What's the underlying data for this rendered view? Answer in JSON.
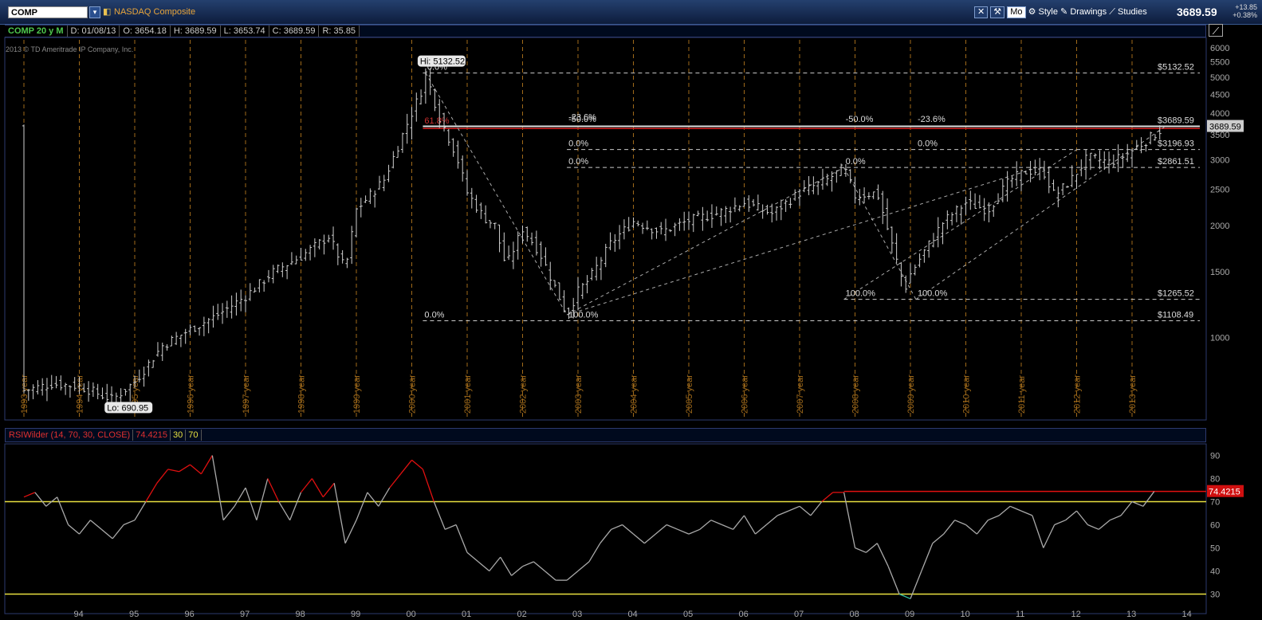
{
  "toolbar": {
    "symbol": "COMP",
    "description": "NASDAQ Composite",
    "mode": "Mo",
    "style_label": "Style",
    "drawings_label": "Drawings",
    "studies_label": "Studies",
    "last_price": "3689.59",
    "change": "+13.85",
    "change_pct": "+0.38%"
  },
  "info_bar": {
    "chart_label": "COMP 20 y M",
    "date": "D: 01/08/13",
    "open": "O: 3654.18",
    "high": "H: 3689.59",
    "low": "L: 3653.74",
    "close": "C: 3689.59",
    "range": "R: 35.85"
  },
  "copyright": "2013 © TD Ameritrade IP Company, Inc.",
  "rsi_bar": {
    "label": "RSIWilder (14, 70, 30, CLOSE)",
    "value": "74.4215",
    "lower": "30",
    "upper": "70"
  },
  "colors": {
    "price_bar": "#cfcfcf",
    "year_line": "#a06a1a",
    "rsi_overbought": "#e01010",
    "rsi_normal": "#aaaaaa",
    "rsi_oversold": "#30c0a0",
    "threshold": "#e8e040"
  },
  "chart_data": [
    {
      "type": "ohlc",
      "title": "COMP 20 y M",
      "y_scale": "log",
      "ylim": [
        600,
        6300
      ],
      "y_ticks": [
        1000,
        1500,
        2000,
        2500,
        3000,
        3500,
        4000,
        4500,
        5000,
        5500,
        6000
      ],
      "x_ticks": [
        "1993 year",
        "1994 year",
        "1995 year",
        "1996 year",
        "1997 year",
        "1998 year",
        "1999 year",
        "2000 year",
        "2001 year",
        "2002 year",
        "2003 year",
        "2004 year",
        "2005 year",
        "2006 year",
        "2007 year",
        "2008 year",
        "2009 year",
        "2010 year",
        "2011 year",
        "2012 year",
        "2013 year"
      ],
      "close_path": [
        [
          1993.0,
          720
        ],
        [
          1993.5,
          750
        ],
        [
          1994.0,
          740
        ],
        [
          1994.2,
          720
        ],
        [
          1994.6,
          680
        ],
        [
          1995.0,
          760
        ],
        [
          1995.5,
          950
        ],
        [
          1996.0,
          1050
        ],
        [
          1996.5,
          1150
        ],
        [
          1997.0,
          1290
        ],
        [
          1997.5,
          1500
        ],
        [
          1998.0,
          1650
        ],
        [
          1998.5,
          1870
        ],
        [
          1998.8,
          1520
        ],
        [
          1999.0,
          2200
        ],
        [
          1999.5,
          2650
        ],
        [
          1999.9,
          3700
        ],
        [
          2000.2,
          4700
        ],
        [
          2000.25,
          5132
        ],
        [
          2000.5,
          3900
        ],
        [
          2000.8,
          3100
        ],
        [
          2001.0,
          2450
        ],
        [
          2001.3,
          2100
        ],
        [
          2001.5,
          2000
        ],
        [
          2001.7,
          1550
        ],
        [
          2002.0,
          1960
        ],
        [
          2002.3,
          1700
        ],
        [
          2002.6,
          1350
        ],
        [
          2002.8,
          1150
        ],
        [
          2003.0,
          1330
        ],
        [
          2003.2,
          1430
        ],
        [
          2003.6,
          1800
        ],
        [
          2004.0,
          2050
        ],
        [
          2004.5,
          1920
        ],
        [
          2005.0,
          2060
        ],
        [
          2005.5,
          2150
        ],
        [
          2006.0,
          2300
        ],
        [
          2006.5,
          2150
        ],
        [
          2007.0,
          2450
        ],
        [
          2007.5,
          2650
        ],
        [
          2007.8,
          2860
        ],
        [
          2008.0,
          2400
        ],
        [
          2008.4,
          2450
        ],
        [
          2008.7,
          1700
        ],
        [
          2008.9,
          1350
        ],
        [
          2009.0,
          1480
        ],
        [
          2009.3,
          1750
        ],
        [
          2009.6,
          2050
        ],
        [
          2010.0,
          2300
        ],
        [
          2010.4,
          2200
        ],
        [
          2010.8,
          2650
        ],
        [
          2011.1,
          2800
        ],
        [
          2011.4,
          2800
        ],
        [
          2011.6,
          2400
        ],
        [
          2011.9,
          2650
        ],
        [
          2012.2,
          3050
        ],
        [
          2012.6,
          2950
        ],
        [
          2012.9,
          3100
        ],
        [
          2013.2,
          3330
        ],
        [
          2013.6,
          3689.59
        ]
      ],
      "high": {
        "label": "Hi: 5132.52",
        "x": 2000.25,
        "y": 5132.52
      },
      "low": {
        "label": "Lo: 690.95",
        "x": 1994.6,
        "y": 690.95
      },
      "levels": [
        {
          "label": "$5132.52",
          "y": 5132.52
        },
        {
          "label": "$3689.59",
          "y": 3689.59
        },
        {
          "label": "$3196.93",
          "y": 3196.93
        },
        {
          "label": "$2861.51",
          "y": 2861.51
        },
        {
          "label": "$1265.52",
          "y": 1265.52
        },
        {
          "label": "$1108.49",
          "y": 1108.49
        }
      ],
      "fib_labels": [
        {
          "text": "0.0%",
          "x": 2000.25,
          "y": 5132.52
        },
        {
          "text": "61.8%",
          "x": 2000.2,
          "y": 3680
        },
        {
          "text": "0.0%",
          "x": 2000.2,
          "y": 1108.49
        },
        {
          "text": "100.0%",
          "x": 2002.8,
          "y": 1108.49
        },
        {
          "text": "-23.6%",
          "x": 2002.8,
          "y": 3760
        },
        {
          "text": "-50.0%",
          "x": 2002.8,
          "y": 3720
        },
        {
          "text": "0.0%",
          "x": 2002.8,
          "y": 3196.93
        },
        {
          "text": "0.0%",
          "x": 2002.8,
          "y": 2861.51
        },
        {
          "text": "-50.0%",
          "x": 2007.8,
          "y": 3720
        },
        {
          "text": "0.0%",
          "x": 2007.8,
          "y": 2861.51
        },
        {
          "text": "100.0%",
          "x": 2007.8,
          "y": 1265.52
        },
        {
          "text": "-23.6%",
          "x": 2009.1,
          "y": 3720
        },
        {
          "text": "0.0%",
          "x": 2009.1,
          "y": 3196.93
        },
        {
          "text": "100.0%",
          "x": 2009.1,
          "y": 1265.52
        }
      ],
      "current": "3689.59"
    },
    {
      "type": "line",
      "title": "RSIWilder (14, 70, 30, CLOSE)",
      "ylim": [
        25,
        95
      ],
      "y_ticks": [
        30,
        40,
        50,
        60,
        70,
        80,
        90
      ],
      "x_ticks": [
        "94",
        "95",
        "96",
        "97",
        "98",
        "99",
        "00",
        "01",
        "02",
        "03",
        "04",
        "05",
        "06",
        "07",
        "08",
        "09",
        "10",
        "11",
        "12",
        "13",
        "14"
      ],
      "thresholds": [
        30,
        70
      ],
      "series": [
        {
          "values": [
            [
              1993.0,
              72
            ],
            [
              1993.2,
              74
            ],
            [
              1993.4,
              68
            ],
            [
              1993.6,
              72
            ],
            [
              1993.8,
              60
            ],
            [
              1994.0,
              56
            ],
            [
              1994.2,
              62
            ],
            [
              1994.4,
              58
            ],
            [
              1994.6,
              54
            ],
            [
              1994.8,
              60
            ],
            [
              1995.0,
              62
            ],
            [
              1995.2,
              70
            ],
            [
              1995.4,
              78
            ],
            [
              1995.6,
              84
            ],
            [
              1995.8,
              83
            ],
            [
              1996.0,
              86
            ],
            [
              1996.2,
              82
            ],
            [
              1996.4,
              90
            ],
            [
              1996.6,
              62
            ],
            [
              1996.8,
              68
            ],
            [
              1997.0,
              76
            ],
            [
              1997.2,
              62
            ],
            [
              1997.4,
              80
            ],
            [
              1997.6,
              70
            ],
            [
              1997.8,
              62
            ],
            [
              1998.0,
              74
            ],
            [
              1998.2,
              80
            ],
            [
              1998.4,
              72
            ],
            [
              1998.6,
              78
            ],
            [
              1998.8,
              52
            ],
            [
              1999.0,
              62
            ],
            [
              1999.2,
              74
            ],
            [
              1999.4,
              68
            ],
            [
              1999.6,
              76
            ],
            [
              1999.8,
              82
            ],
            [
              2000.0,
              88
            ],
            [
              2000.2,
              84
            ],
            [
              2000.4,
              70
            ],
            [
              2000.6,
              58
            ],
            [
              2000.8,
              60
            ],
            [
              2001.0,
              48
            ],
            [
              2001.2,
              44
            ],
            [
              2001.4,
              40
            ],
            [
              2001.6,
              46
            ],
            [
              2001.8,
              38
            ],
            [
              2002.0,
              42
            ],
            [
              2002.2,
              44
            ],
            [
              2002.4,
              40
            ],
            [
              2002.6,
              36
            ],
            [
              2002.8,
              36
            ],
            [
              2003.0,
              40
            ],
            [
              2003.2,
              44
            ],
            [
              2003.4,
              52
            ],
            [
              2003.6,
              58
            ],
            [
              2003.8,
              60
            ],
            [
              2004.0,
              56
            ],
            [
              2004.2,
              52
            ],
            [
              2004.4,
              56
            ],
            [
              2004.6,
              60
            ],
            [
              2004.8,
              58
            ],
            [
              2005.0,
              56
            ],
            [
              2005.2,
              58
            ],
            [
              2005.4,
              62
            ],
            [
              2005.6,
              60
            ],
            [
              2005.8,
              58
            ],
            [
              2006.0,
              64
            ],
            [
              2006.2,
              56
            ],
            [
              2006.4,
              60
            ],
            [
              2006.6,
              64
            ],
            [
              2006.8,
              66
            ],
            [
              2007.0,
              68
            ],
            [
              2007.2,
              64
            ],
            [
              2007.4,
              70
            ],
            [
              2007.6,
              74
            ],
            [
              2007.8,
              74
            ],
            [
              2008.0,
              50
            ],
            [
              2008.2,
              48
            ],
            [
              2008.4,
              52
            ],
            [
              2008.6,
              42
            ],
            [
              2008.8,
              30
            ],
            [
              2009.0,
              28
            ],
            [
              2009.2,
              40
            ],
            [
              2009.4,
              52
            ],
            [
              2009.6,
              56
            ],
            [
              2009.8,
              62
            ],
            [
              2010.0,
              60
            ],
            [
              2010.2,
              56
            ],
            [
              2010.4,
              62
            ],
            [
              2010.6,
              64
            ],
            [
              2010.8,
              68
            ],
            [
              2011.0,
              66
            ],
            [
              2011.2,
              64
            ],
            [
              2011.4,
              50
            ],
            [
              2011.6,
              60
            ],
            [
              2011.8,
              62
            ],
            [
              2012.0,
              66
            ],
            [
              2012.2,
              60
            ],
            [
              2012.4,
              58
            ],
            [
              2012.6,
              62
            ],
            [
              2012.8,
              64
            ],
            [
              2013.0,
              70
            ],
            [
              2013.2,
              68
            ],
            [
              2013.4,
              74.42
            ]
          ]
        }
      ],
      "current": "74.4215"
    }
  ]
}
